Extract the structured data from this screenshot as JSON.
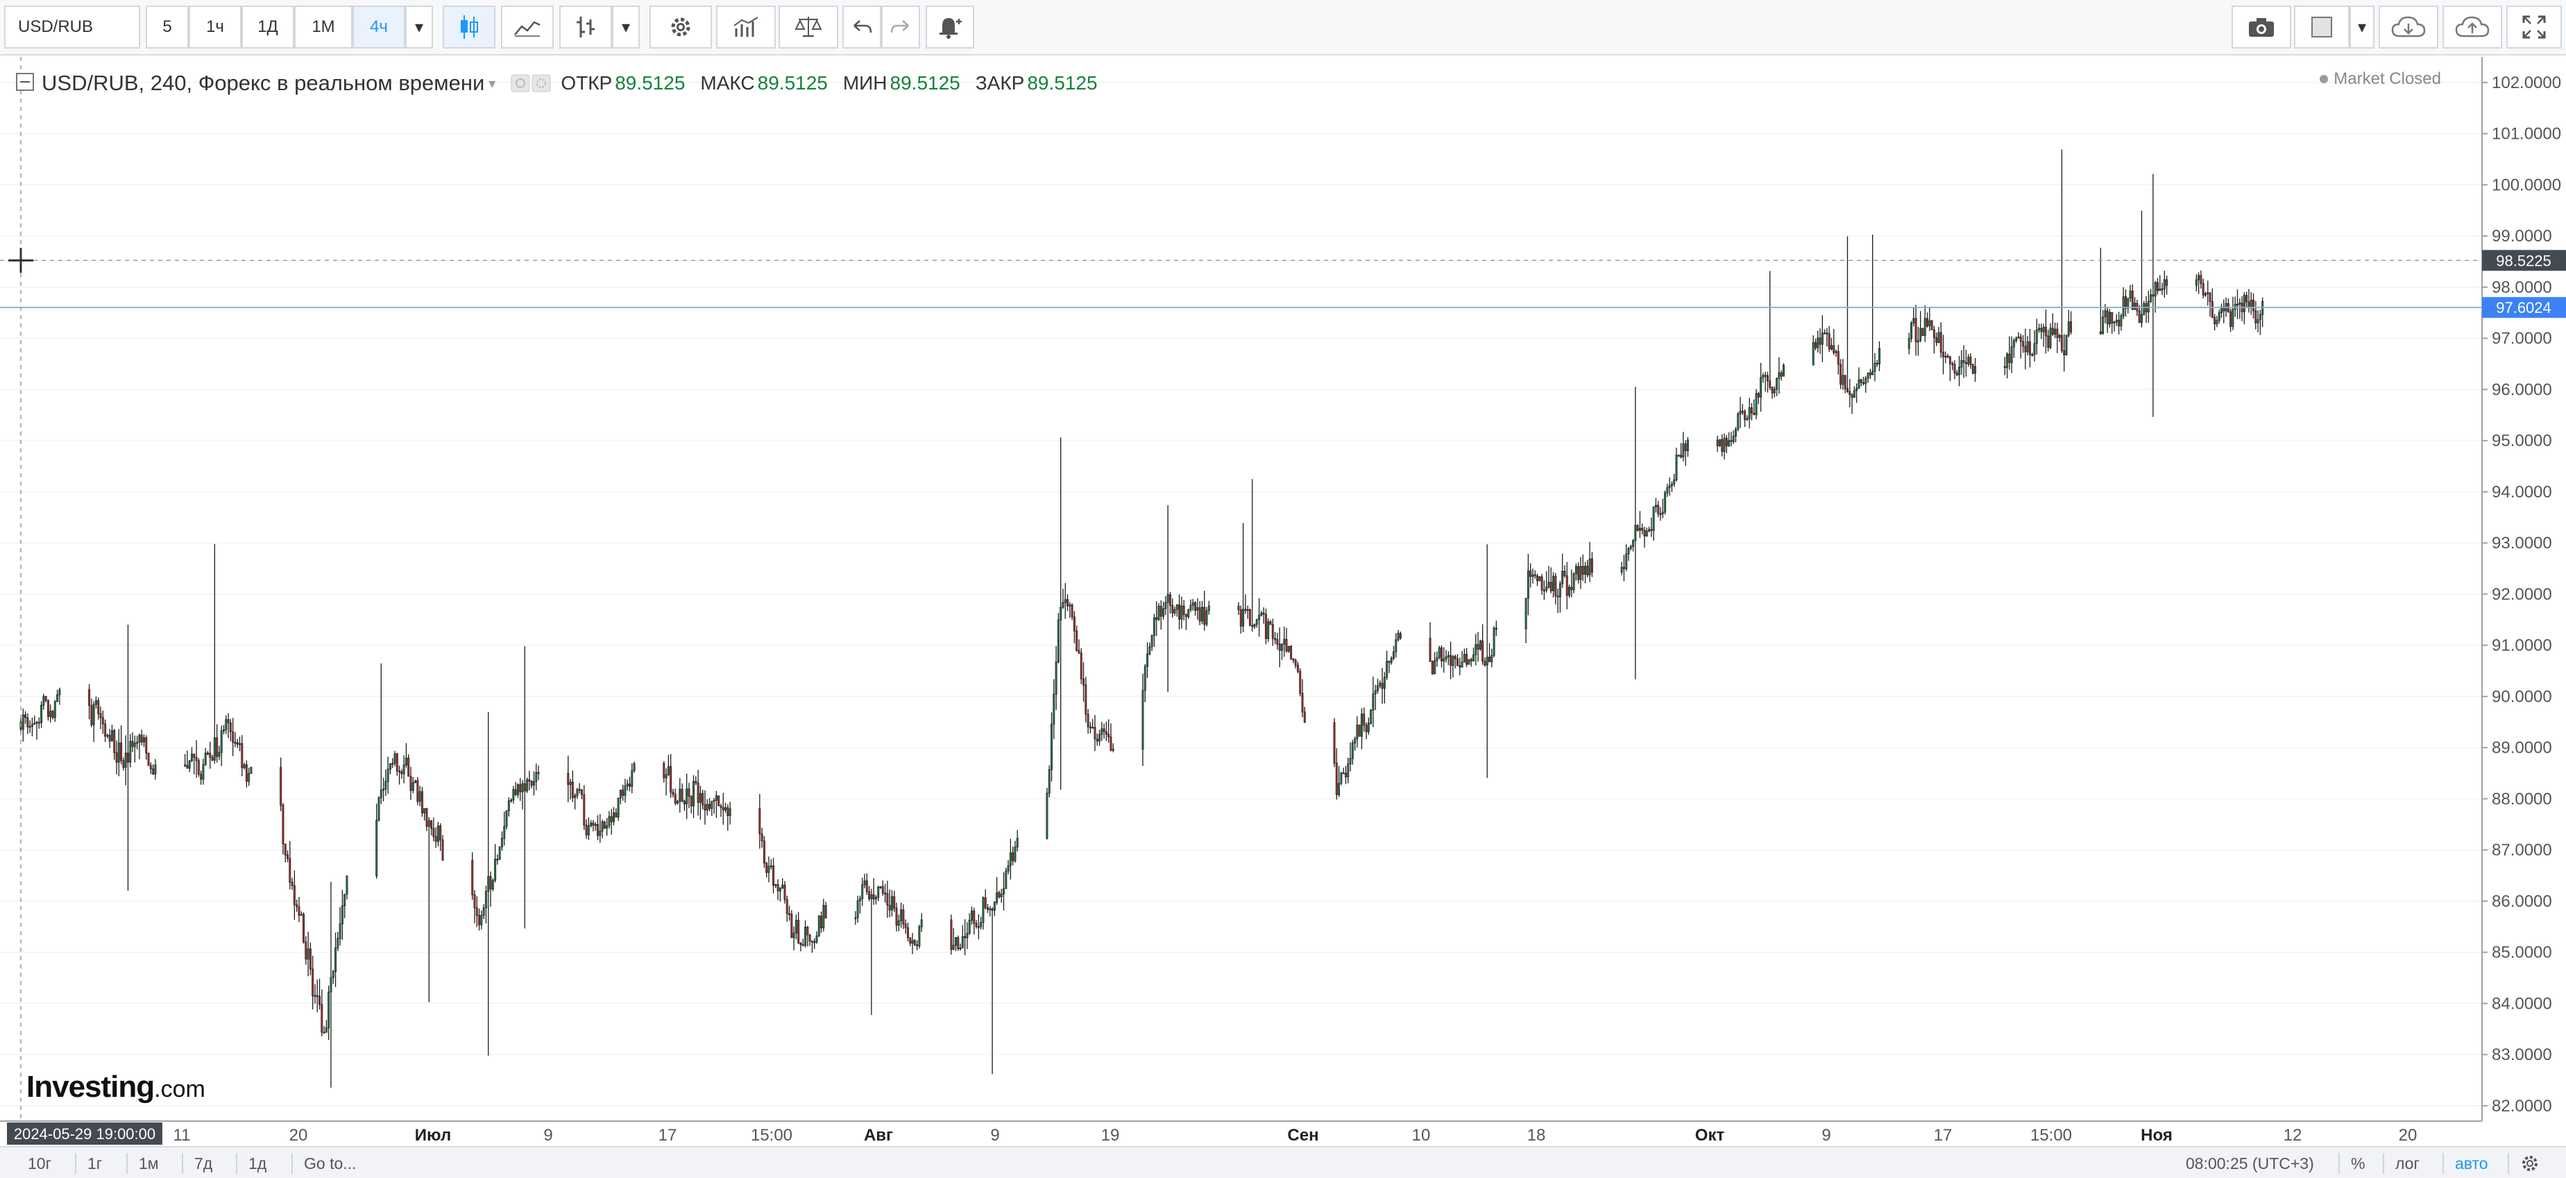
{
  "toolbar": {
    "symbol": "USD/RUB",
    "intervals": [
      "5",
      "1ч",
      "1Д",
      "1М",
      "4ч"
    ],
    "active_interval": "4ч",
    "icons": [
      "candles-icon",
      "indicator-line-icon",
      "compare-bars-icon",
      "dropdown-icon",
      "settings-gear-icon",
      "indicators-icon",
      "scales-icon",
      "undo-icon",
      "redo-icon",
      "alert-bell-icon",
      "camera-icon",
      "square-color-icon",
      "cloud-download-icon",
      "cloud-upload-icon",
      "fullscreen-icon"
    ]
  },
  "legend": {
    "title": "USD/RUB, 240, Форекс в реальном времени",
    "open_label": "ОТКР",
    "open_value": "89.5125",
    "high_label": "МАКС",
    "high_value": "89.5125",
    "low_label": "МИН",
    "low_value": "89.5125",
    "close_label": "ЗАКР",
    "close_value": "89.5125"
  },
  "market_status": "Market Closed",
  "crosshair": {
    "price_label": "98.5225",
    "time_label": "2024-05-29 19:00:00"
  },
  "last_price": "97.6024",
  "colors": {
    "up": "#1e8c4e",
    "down": "#c62e2e",
    "accent": "#2196f3",
    "last_price_bg": "#3b82f6"
  },
  "chart_data": {
    "type": "candlestick",
    "symbol": "USD/RUB",
    "interval": "240",
    "ylim": [
      81.7,
      102.5
    ],
    "y_ticks": [
      "102.0000",
      "101.0000",
      "100.0000",
      "99.0000",
      "98.0000",
      "97.0000",
      "96.0000",
      "95.0000",
      "94.0000",
      "93.0000",
      "92.0000",
      "91.0000",
      "90.0000",
      "89.0000",
      "88.0000",
      "87.0000",
      "86.0000",
      "85.0000",
      "84.0000",
      "83.0000",
      "82.0000"
    ],
    "x_ticks": [
      "11",
      "20",
      "Июл",
      "9",
      "17",
      "15:00",
      "Авг",
      "9",
      "19",
      "Сен",
      "10",
      "18",
      "Окт",
      "9",
      "17",
      "15:00",
      "Ноя",
      "12",
      "20"
    ],
    "bold_x_ticks": [
      "Июл",
      "Авг",
      "Сен",
      "Окт",
      "Ноя"
    ],
    "price_anchors": [
      {
        "date": "2024-05-29",
        "price": 89.5
      },
      {
        "date": "2024-06-02",
        "price": 90.2
      },
      {
        "date": "2024-06-05",
        "price": 89.0
      },
      {
        "date": "2024-06-11",
        "price": 88.7
      },
      {
        "date": "2024-06-13",
        "price": 89.3
      },
      {
        "date": "2024-06-15",
        "price": 88.3
      },
      {
        "date": "2024-06-18",
        "price": 86.0
      },
      {
        "date": "2024-06-20",
        "price": 83.5
      },
      {
        "date": "2024-06-22",
        "price": 86.8
      },
      {
        "date": "2024-06-25",
        "price": 89.0
      },
      {
        "date": "2024-06-28",
        "price": 87.5
      },
      {
        "date": "2024-07-01",
        "price": 85.3
      },
      {
        "date": "2024-07-04",
        "price": 88.2
      },
      {
        "date": "2024-07-07",
        "price": 88.4
      },
      {
        "date": "2024-07-10",
        "price": 87.3
      },
      {
        "date": "2024-07-13",
        "price": 88.6
      },
      {
        "date": "2024-07-17",
        "price": 88.2
      },
      {
        "date": "2024-07-21",
        "price": 87.3
      },
      {
        "date": "2024-07-25",
        "price": 85.1
      },
      {
        "date": "2024-07-28",
        "price": 86.3
      },
      {
        "date": "2024-08-01",
        "price": 85.8
      },
      {
        "date": "2024-08-05",
        "price": 85.0
      },
      {
        "date": "2024-08-09",
        "price": 86.5
      },
      {
        "date": "2024-08-12",
        "price": 89.0
      },
      {
        "date": "2024-08-13",
        "price": 92.3
      },
      {
        "date": "2024-08-15",
        "price": 89.3
      },
      {
        "date": "2024-08-17",
        "price": 88.8
      },
      {
        "date": "2024-08-20",
        "price": 91.8
      },
      {
        "date": "2024-08-24",
        "price": 91.6
      },
      {
        "date": "2024-08-28",
        "price": 91.3
      },
      {
        "date": "2024-08-30",
        "price": 90.3
      },
      {
        "date": "2024-09-02",
        "price": 88.0
      },
      {
        "date": "2024-09-04",
        "price": 89.5
      },
      {
        "date": "2024-09-07",
        "price": 91.5
      },
      {
        "date": "2024-09-10",
        "price": 90.5
      },
      {
        "date": "2024-09-13",
        "price": 91.0
      },
      {
        "date": "2024-09-16",
        "price": 92.5
      },
      {
        "date": "2024-09-19",
        "price": 92.2
      },
      {
        "date": "2024-09-22",
        "price": 92.5
      },
      {
        "date": "2024-09-26",
        "price": 93.8
      },
      {
        "date": "2024-09-28",
        "price": 95.3
      },
      {
        "date": "2024-10-01",
        "price": 95.0
      },
      {
        "date": "2024-10-04",
        "price": 96.5
      },
      {
        "date": "2024-10-07",
        "price": 97.0
      },
      {
        "date": "2024-10-10",
        "price": 96.0
      },
      {
        "date": "2024-10-12",
        "price": 96.8
      },
      {
        "date": "2024-10-15",
        "price": 97.2
      },
      {
        "date": "2024-10-18",
        "price": 96.2
      },
      {
        "date": "2024-10-21",
        "price": 96.8
      },
      {
        "date": "2024-10-24",
        "price": 97.0
      },
      {
        "date": "2024-10-28",
        "price": 97.3
      },
      {
        "date": "2024-10-31",
        "price": 97.8
      },
      {
        "date": "2024-11-03",
        "price": 98.8
      },
      {
        "date": "2024-11-05",
        "price": 97.5
      },
      {
        "date": "2024-11-07",
        "price": 97.7
      },
      {
        "date": "2024-11-09",
        "price": 97.6
      }
    ]
  },
  "bottombar": {
    "ranges": [
      "10г",
      "1г",
      "1м",
      "7д",
      "1д"
    ],
    "goto": "Go to...",
    "clock": "08:00:25 (UTC+3)",
    "pct": "%",
    "log": "лог",
    "auto": "авто"
  },
  "logo": {
    "main": "Investing",
    "suffix": ".com"
  }
}
